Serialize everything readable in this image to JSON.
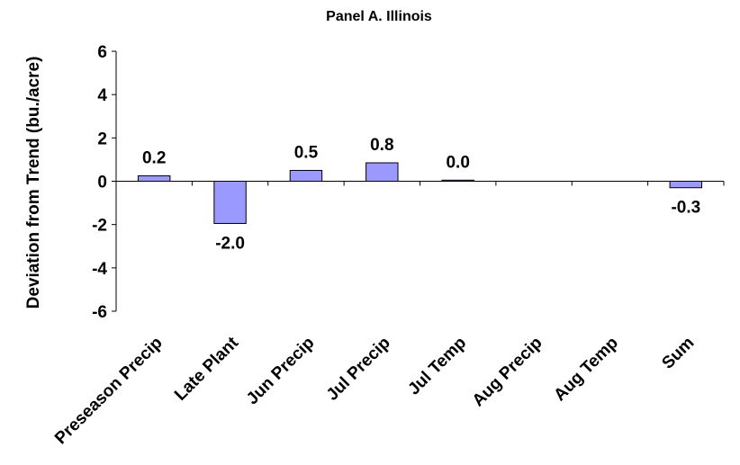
{
  "chart_data": {
    "type": "bar",
    "title": "Panel A. Illinois",
    "ylabel": "Deviation from Trend (bu./acre)",
    "xlabel": "",
    "categories": [
      "Preseason Precip",
      "Late Plant",
      "Jun Precip",
      "Jul Precip",
      "Jul Temp",
      "Aug Precip",
      "Aug Temp",
      "Sum"
    ],
    "values": [
      0.25,
      -1.95,
      0.5,
      0.85,
      0.05,
      0.0,
      0.0,
      -0.3
    ],
    "data_labels": [
      "0.2",
      "-2.0",
      "0.5",
      "0.8",
      "0.0",
      "",
      "",
      "-0.3"
    ],
    "ylim": [
      -6,
      6
    ],
    "yticks": [
      -6,
      -4,
      -2,
      0,
      2,
      4,
      6
    ],
    "ytick_labels": [
      "-6",
      "-4",
      "-2",
      "0",
      "2",
      "4",
      "6"
    ],
    "grid": false,
    "legend": "none",
    "colors": {
      "bar_fill": "#9999ff",
      "bar_stroke": "#000000",
      "axis": "#000000"
    }
  }
}
